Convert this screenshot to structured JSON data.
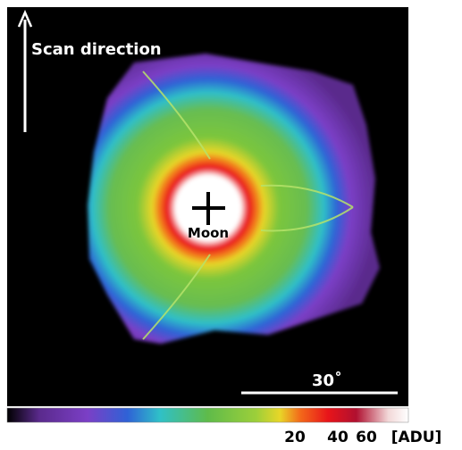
{
  "image": {
    "scan_label": "Scan direction",
    "target_label": "Moon",
    "scale_label": "30˚"
  },
  "colorbar": {
    "ticks": [
      20,
      40,
      60
    ],
    "unit": "[ADU]"
  }
}
